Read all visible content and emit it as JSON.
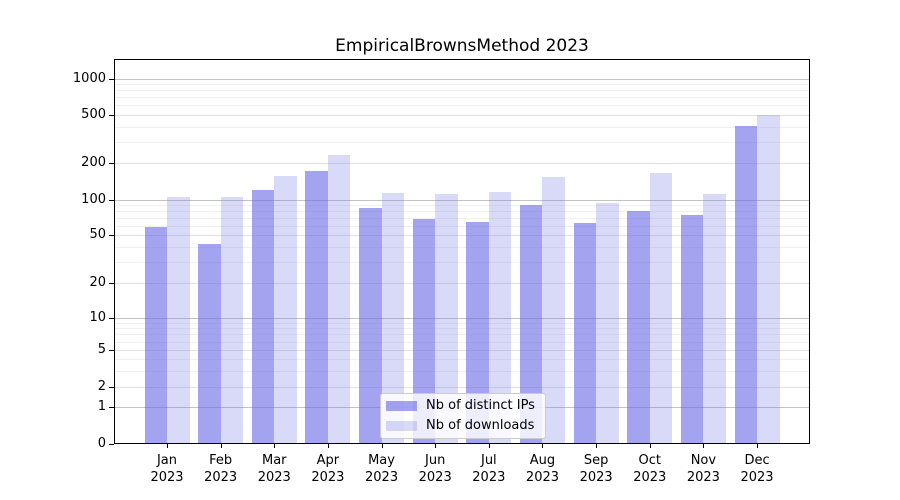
{
  "title": "EmpiricalBrownsMethod 2023",
  "chart_data": {
    "type": "bar",
    "title": "EmpiricalBrownsMethod 2023",
    "categories": [
      "Jan 2023",
      "Feb 2023",
      "Mar 2023",
      "Apr 2023",
      "May 2023",
      "Jun 2023",
      "Jul 2023",
      "Aug 2023",
      "Sep 2023",
      "Oct 2023",
      "Nov 2023",
      "Dec 2023"
    ],
    "series": [
      {
        "name": "Nb of distinct IPs",
        "color": "rgba(102,102,229,0.6)",
        "values": [
          58,
          42,
          120,
          172,
          84,
          68,
          64,
          90,
          63,
          79,
          74,
          400
        ]
      },
      {
        "name": "Nb of downloads",
        "color": "rgba(102,102,229,0.25)",
        "values": [
          105,
          104,
          155,
          232,
          112,
          110,
          116,
          152,
          94,
          165,
          111,
          500
        ]
      }
    ],
    "y_axis": {
      "scale": "symlog",
      "ticks": [
        0,
        1,
        2,
        5,
        10,
        20,
        50,
        100,
        200,
        500,
        1000
      ],
      "decade_ticks": [
        1,
        10,
        100,
        1000
      ],
      "minor_gridlines": [
        3,
        4,
        6,
        7,
        8,
        9,
        30,
        40,
        60,
        70,
        80,
        90,
        300,
        400,
        600,
        700,
        800,
        900
      ],
      "ylim": [
        0,
        1450
      ]
    },
    "grid": true,
    "legend_position": "lower center"
  },
  "colors": {
    "bar_distinct_ips": "rgba(102,102,229,0.6)",
    "bar_downloads": "rgba(102,102,229,0.25)",
    "axis": "#000000",
    "grid_decade": "#c4c4c4",
    "grid_major": "#e2e2e2",
    "grid_minor": "#f0f0f0",
    "legend_border": "#cccccc",
    "legend_background": "rgba(255,255,255,0.8)"
  }
}
